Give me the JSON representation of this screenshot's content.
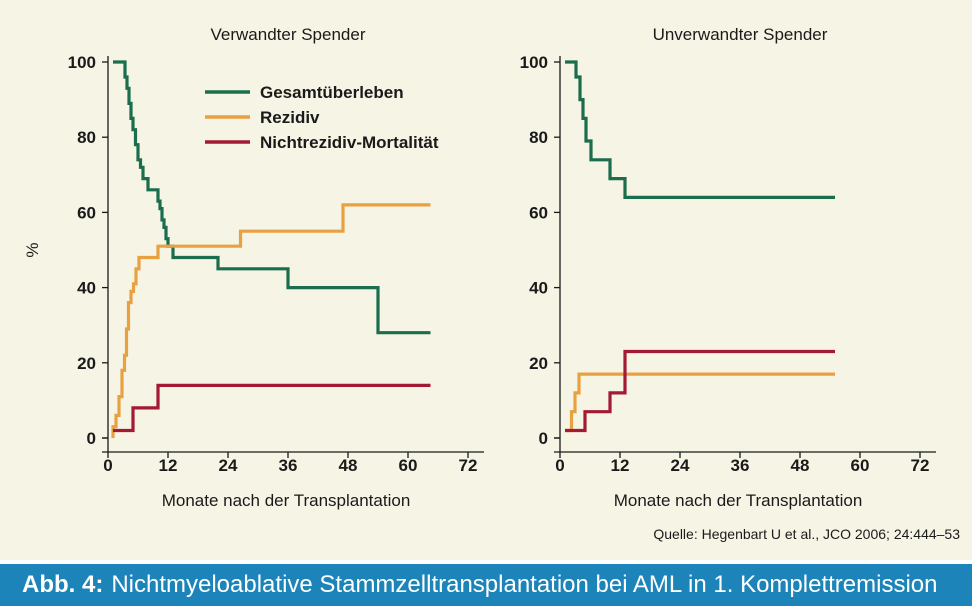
{
  "source": "Quelle: Hegenbart U et al., JCO 2006; 24:444–53",
  "caption": {
    "label": "Abb. 4:",
    "text": "Nichtmyeloablative Stammzelltransplantation bei AML in 1. Komplettremission"
  },
  "legend": {
    "placement": "top-center of left panel",
    "entries": [
      {
        "name": "Gesamtüberleben",
        "color": "#1a6e4e"
      },
      {
        "name": "Rezidiv",
        "color": "#e9a040"
      },
      {
        "name": "Nichtrezidiv-Mortalität",
        "color": "#a31a35"
      }
    ]
  },
  "chart_data": [
    {
      "type": "line",
      "step": true,
      "title": "Verwandter Spender",
      "xlabel": "Monate nach der Transplantation",
      "ylabel": "%",
      "xlim": [
        0,
        72
      ],
      "ylim": [
        0,
        100
      ],
      "xticks": [
        0,
        12,
        24,
        36,
        48,
        60,
        72
      ],
      "yticks": [
        0,
        20,
        40,
        60,
        80,
        100
      ],
      "grid": false,
      "series": [
        {
          "name": "Gesamtüberleben",
          "color": "#1a6e4e",
          "x": [
            1,
            3,
            3.4,
            3.8,
            4.2,
            4.6,
            5,
            5.5,
            6,
            6.5,
            7,
            8,
            10,
            10.4,
            10.8,
            11.2,
            11.6,
            12,
            13,
            22,
            36,
            54,
            64.5
          ],
          "y": [
            100,
            100,
            96,
            93,
            89,
            85,
            82,
            78,
            74,
            72,
            69,
            66,
            63,
            61,
            58,
            56,
            53,
            51,
            48,
            45,
            40,
            28,
            28
          ]
        },
        {
          "name": "Rezidiv",
          "color": "#e9a040",
          "x": [
            1,
            1.6,
            2.2,
            2.8,
            3.3,
            3.7,
            4.1,
            4.6,
            5.1,
            5.6,
            6.2,
            10,
            13,
            26.5,
            47,
            64.5
          ],
          "y": [
            3,
            6,
            11,
            18,
            22,
            29,
            36,
            39,
            41,
            45,
            48,
            51,
            51,
            55,
            62,
            62
          ],
          "start_y": 0
        },
        {
          "name": "Nichtrezidiv-Mortalität",
          "color": "#a31a35",
          "x": [
            1,
            5,
            10,
            64.5
          ],
          "y": [
            2,
            8,
            14,
            14
          ]
        }
      ]
    },
    {
      "type": "line",
      "step": true,
      "title": "Unverwandter Spender",
      "xlabel": "Monate nach der Transplantation",
      "ylabel": "",
      "xlim": [
        0,
        72
      ],
      "ylim": [
        0,
        100
      ],
      "xticks": [
        0,
        12,
        24,
        36,
        48,
        60,
        72
      ],
      "yticks": [
        0,
        20,
        40,
        60,
        80,
        100
      ],
      "grid": false,
      "series": [
        {
          "name": "Gesamtüberleben",
          "color": "#1a6e4e",
          "x": [
            1,
            3.2,
            4,
            4.6,
            5.2,
            6.2,
            10,
            13,
            55
          ],
          "y": [
            100,
            96,
            90,
            85,
            79,
            74,
            69,
            64,
            64
          ]
        },
        {
          "name": "Rezidiv",
          "color": "#e9a040",
          "x": [
            1,
            2.3,
            3,
            3.8,
            55
          ],
          "y": [
            2,
            7,
            12,
            17,
            17
          ]
        },
        {
          "name": "Nichtrezidiv-Mortalität",
          "color": "#a31a35",
          "x": [
            1,
            5,
            10,
            13,
            55
          ],
          "y": [
            2,
            7,
            12,
            23,
            23
          ]
        }
      ]
    }
  ]
}
